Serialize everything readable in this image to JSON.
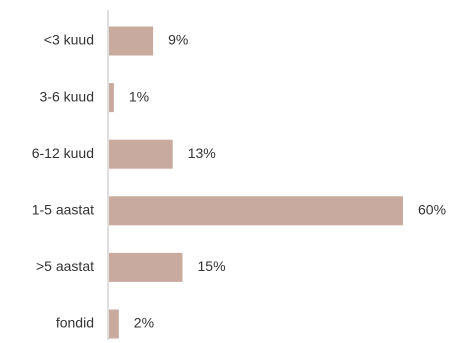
{
  "chart_data": {
    "type": "bar",
    "orientation": "horizontal",
    "categories": [
      "<3 kuud",
      "3-6 kuud",
      "6-12 kuud",
      "1-5 aastat",
      ">5 aastat",
      "fondid"
    ],
    "values": [
      9,
      1,
      13,
      60,
      15,
      2
    ],
    "value_labels": [
      "9%",
      "1%",
      "13%",
      "60%",
      "15%",
      "2%"
    ],
    "unit": "%",
    "xlim": [
      0,
      60
    ],
    "grid": false,
    "legend": "none",
    "colors": {
      "bar": "#c9aa9f",
      "axis": "#bfbfbf",
      "text": "#333333"
    }
  }
}
